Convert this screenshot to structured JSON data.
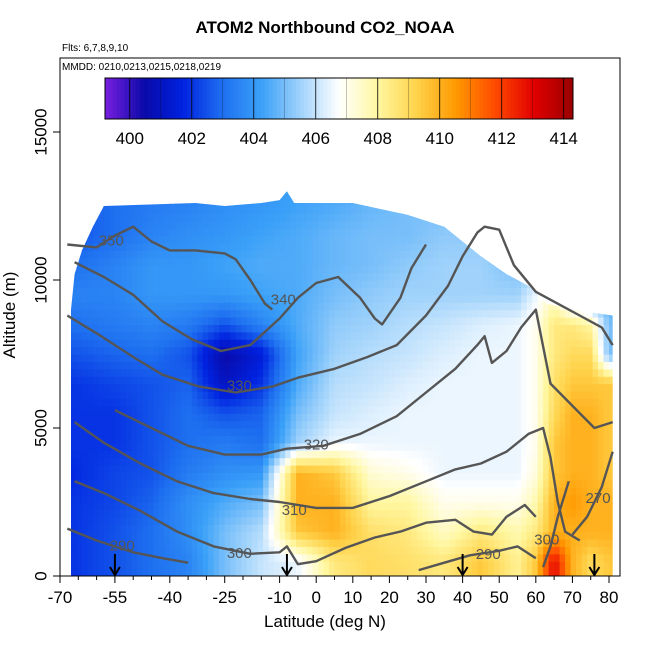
{
  "chart_data": {
    "type": "heatmap",
    "title": "ATOM2 Northbound CO2_NOAA",
    "notes": [
      "Flts: 6,7,8,9,10",
      "MMDD: 0210,0213,0215,0218,0219"
    ],
    "xlabel": "Latitude (deg N)",
    "ylabel": "Altitude (m)",
    "xlim": [
      -70,
      83
    ],
    "ylim": [
      0,
      17500
    ],
    "x_ticks": [
      -70,
      -55,
      -40,
      -25,
      -10,
      0,
      10,
      20,
      30,
      40,
      50,
      60,
      70,
      80
    ],
    "y_ticks": [
      0,
      5000,
      10000,
      15000
    ],
    "colorbar": {
      "min": 399.2,
      "max": 414.3,
      "ticks": [
        400,
        402,
        404,
        406,
        408,
        410,
        412,
        414
      ],
      "colors": [
        "#7a1fe0",
        "#0a0aa8",
        "#0022e0",
        "#1e6ff0",
        "#3aa0f8",
        "#9fd2fb",
        "#ffffff",
        "#fff7a0",
        "#ffd24a",
        "#ff9900",
        "#ff4a00",
        "#e00000",
        "#9a0000"
      ]
    },
    "co2_field": {
      "lat": [
        -67,
        -55,
        -45,
        -35,
        -25,
        -15,
        -5,
        5,
        15,
        25,
        35,
        45,
        55,
        60,
        65,
        70,
        75,
        80
      ],
      "alt": [
        500,
        1500,
        2500,
        3500,
        4500,
        5500,
        6500,
        7500,
        8500,
        9500,
        10500,
        11500,
        12500
      ],
      "values": [
        [
          402.0,
          402.5,
          403.0,
          403.5,
          405.0,
          406.0,
          406.5,
          408.5,
          409.0,
          408.8,
          408.5,
          409.5,
          408.2,
          409.5,
          413.0,
          410.0,
          409.0,
          409.5
        ],
        [
          402.0,
          402.5,
          403.0,
          403.8,
          405.0,
          405.8,
          409.5,
          410.0,
          408.8,
          408.5,
          407.5,
          408.5,
          407.8,
          408.5,
          410.0,
          410.0,
          410.0,
          410.0
        ],
        [
          402.0,
          402.3,
          402.8,
          403.8,
          404.5,
          405.0,
          410.0,
          410.0,
          408.0,
          408.0,
          407.0,
          407.0,
          407.0,
          407.8,
          410.0,
          410.5,
          410.0,
          410.0
        ],
        [
          401.8,
          402.3,
          402.5,
          403.3,
          403.8,
          404.0,
          410.0,
          409.5,
          407.3,
          407.0,
          406.5,
          406.5,
          406.5,
          407.2,
          409.5,
          410.0,
          410.0,
          409.5
        ],
        [
          402.0,
          402.0,
          402.5,
          403.0,
          403.3,
          403.0,
          405.5,
          406.5,
          406.5,
          406.5,
          406.5,
          406.5,
          406.5,
          407.0,
          409.5,
          410.0,
          410.0,
          409.5
        ],
        [
          402.0,
          402.0,
          402.5,
          403.0,
          402.5,
          402.8,
          405.0,
          406.0,
          406.3,
          406.5,
          406.5,
          406.5,
          406.5,
          407.0,
          409.0,
          410.0,
          410.0,
          409.5
        ],
        [
          402.0,
          402.3,
          402.5,
          402.8,
          401.0,
          402.0,
          404.5,
          405.8,
          406.0,
          406.3,
          406.5,
          406.5,
          406.5,
          407.0,
          408.8,
          409.5,
          409.5,
          409.5
        ],
        [
          402.5,
          402.8,
          403.0,
          402.5,
          400.5,
          401.5,
          404.3,
          405.5,
          405.8,
          406.0,
          406.3,
          406.5,
          406.5,
          407.0,
          408.5,
          409.0,
          409.0,
          405.0
        ],
        [
          403.0,
          403.3,
          403.5,
          403.3,
          402.5,
          403.5,
          404.5,
          405.3,
          405.5,
          405.8,
          406.0,
          406.3,
          406.5,
          407.0,
          408.5,
          408.5,
          408.0,
          405.0
        ],
        [
          403.5,
          403.5,
          404.0,
          404.0,
          404.0,
          404.3,
          404.5,
          405.0,
          405.3,
          405.5,
          405.5,
          405.5,
          405.5,
          406.5,
          407.5,
          405.0,
          404.5,
          404.5
        ],
        [
          403.0,
          403.5,
          404.0,
          404.0,
          404.3,
          404.5,
          404.5,
          404.8,
          405.0,
          405.3,
          405.5,
          405.5,
          405.0,
          405.5,
          405.5,
          405.0,
          404.5,
          404.5
        ],
        [
          402.5,
          403.0,
          403.5,
          403.8,
          404.0,
          404.3,
          404.5,
          404.8,
          405.0,
          405.0,
          405.3,
          405.3,
          405.0,
          405.0,
          404.5,
          404.5,
          404.5,
          404.5
        ],
        [
          402.5,
          403.0,
          403.3,
          403.5,
          403.8,
          404.0,
          404.3,
          404.5,
          404.8,
          405.0,
          405.0,
          405.0,
          405.0,
          405.0,
          404.5,
          404.5,
          404.5,
          404.5
        ]
      ]
    },
    "theta_contours": [
      {
        "label": "290",
        "label_lat": -53,
        "label_alt": 1000,
        "points": [
          [
            -68,
            1600
          ],
          [
            -60,
            1200
          ],
          [
            -50,
            800
          ],
          [
            -42,
            600
          ],
          [
            -35,
            450
          ]
        ]
      },
      {
        "label": "290",
        "label_lat": 47,
        "label_alt": 700,
        "points": [
          [
            28,
            200
          ],
          [
            35,
            450
          ],
          [
            42,
            700
          ],
          [
            50,
            850
          ],
          [
            55,
            1000
          ],
          [
            60,
            600
          ]
        ]
      },
      {
        "label": "300",
        "label_lat": -21,
        "label_alt": 750,
        "points": [
          [
            -66,
            3200
          ],
          [
            -58,
            2800
          ],
          [
            -48,
            2200
          ],
          [
            -38,
            1500
          ],
          [
            -28,
            1000
          ],
          [
            -18,
            750
          ],
          [
            -10,
            800
          ],
          [
            -8,
            1000
          ],
          [
            -5,
            400
          ],
          [
            0,
            500
          ],
          [
            8,
            950
          ],
          [
            16,
            1300
          ],
          [
            23,
            1500
          ],
          [
            30,
            1800
          ],
          [
            38,
            1900
          ],
          [
            43,
            1500
          ],
          [
            48,
            1400
          ],
          [
            52,
            2000
          ],
          [
            57,
            2400
          ],
          [
            60,
            2000
          ]
        ]
      },
      {
        "label": "300",
        "label_lat": 63,
        "label_alt": 1200,
        "points": [
          [
            62,
            300
          ],
          [
            64,
            1000
          ],
          [
            66,
            2000
          ],
          [
            69,
            3200
          ]
        ]
      },
      {
        "label": "310",
        "label_lat": -6,
        "label_alt": 2200,
        "points": [
          [
            -66,
            5200
          ],
          [
            -58,
            4500
          ],
          [
            -48,
            3800
          ],
          [
            -38,
            3200
          ],
          [
            -28,
            2800
          ],
          [
            -18,
            2600
          ],
          [
            -10,
            2500
          ],
          [
            0,
            2300
          ],
          [
            10,
            2300
          ],
          [
            20,
            2700
          ],
          [
            30,
            3200
          ],
          [
            38,
            3600
          ],
          [
            45,
            3800
          ],
          [
            52,
            4200
          ],
          [
            58,
            4800
          ],
          [
            62,
            5000
          ],
          [
            64,
            4000
          ],
          [
            66,
            2500
          ],
          [
            68,
            1500
          ],
          [
            72,
            1200
          ]
        ]
      },
      {
        "label": "270",
        "label_lat": 77,
        "label_alt": 2600,
        "points": [
          [
            70,
            1400
          ],
          [
            74,
            2000
          ],
          [
            78,
            3000
          ],
          [
            81,
            4200
          ]
        ]
      },
      {
        "label": "320",
        "label_lat": 0,
        "label_alt": 4400,
        "points": [
          [
            -55,
            5600
          ],
          [
            -45,
            5000
          ],
          [
            -35,
            4400
          ],
          [
            -25,
            4100
          ],
          [
            -15,
            4100
          ],
          [
            -8,
            4300
          ],
          [
            2,
            4400
          ],
          [
            12,
            4800
          ],
          [
            22,
            5400
          ],
          [
            30,
            6200
          ],
          [
            38,
            7000
          ],
          [
            44,
            7800
          ],
          [
            46,
            8100
          ],
          [
            48,
            7200
          ],
          [
            52,
            7600
          ],
          [
            56,
            8400
          ],
          [
            60,
            9000
          ],
          [
            64,
            6500
          ],
          [
            68,
            6000
          ],
          [
            72,
            5500
          ],
          [
            76,
            5000
          ],
          [
            81,
            5200
          ]
        ]
      },
      {
        "label": "330",
        "label_lat": -21,
        "label_alt": 6400,
        "points": [
          [
            -68,
            8800
          ],
          [
            -60,
            8200
          ],
          [
            -50,
            7400
          ],
          [
            -42,
            6800
          ],
          [
            -32,
            6400
          ],
          [
            -22,
            6200
          ],
          [
            -12,
            6400
          ],
          [
            -5,
            6700
          ],
          [
            5,
            7000
          ],
          [
            14,
            7400
          ],
          [
            22,
            7800
          ],
          [
            30,
            8800
          ],
          [
            36,
            9800
          ],
          [
            40,
            10800
          ],
          [
            44,
            11600
          ],
          [
            46,
            11800
          ],
          [
            50,
            11700
          ],
          [
            54,
            10500
          ],
          [
            60,
            9600
          ],
          [
            66,
            9200
          ],
          [
            72,
            8800
          ],
          [
            78,
            8400
          ],
          [
            81,
            7800
          ]
        ]
      },
      {
        "label": "340",
        "label_lat": -9,
        "label_alt": 9300,
        "points": [
          [
            -66,
            10600
          ],
          [
            -58,
            10100
          ],
          [
            -50,
            9500
          ],
          [
            -42,
            8600
          ],
          [
            -34,
            8000
          ],
          [
            -26,
            7600
          ],
          [
            -18,
            7800
          ],
          [
            -10,
            8700
          ],
          [
            -5,
            9400
          ],
          [
            0,
            9900
          ],
          [
            6,
            10100
          ],
          [
            12,
            9400
          ],
          [
            16,
            8700
          ],
          [
            18,
            8500
          ],
          [
            23,
            9400
          ],
          [
            26,
            10400
          ],
          [
            30,
            11200
          ]
        ]
      },
      {
        "label": "350",
        "label_lat": -56,
        "label_alt": 11300,
        "points": [
          [
            -68,
            11200
          ],
          [
            -60,
            11100
          ],
          [
            -55,
            11500
          ],
          [
            -50,
            11800
          ],
          [
            -45,
            11300
          ],
          [
            -40,
            11000
          ],
          [
            -33,
            11000
          ],
          [
            -25,
            10900
          ],
          [
            -22,
            10700
          ],
          [
            -18,
            10000
          ],
          [
            -14,
            9200
          ],
          [
            -12,
            9000
          ]
        ]
      }
    ],
    "flight_markers_lat": [
      -55,
      -8,
      40,
      76
    ]
  }
}
